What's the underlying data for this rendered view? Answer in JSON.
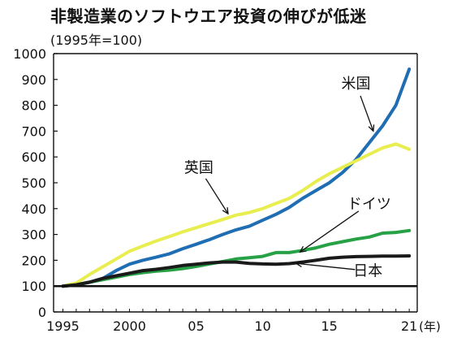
{
  "chart_data": {
    "type": "line",
    "title": "非製造業のソフトウエア投資の伸びが低迷",
    "subtitle": "(1995年=100)",
    "xlabel": "(年)",
    "ylim": [
      0,
      1000
    ],
    "xlim": [
      1994.3,
      2021.6
    ],
    "y_ticks": [
      "0",
      "100",
      "200",
      "300",
      "400",
      "500",
      "600",
      "700",
      "800",
      "900",
      "1000"
    ],
    "x_ticks": [
      {
        "x": 1995,
        "label": "1995"
      },
      {
        "x": 2000,
        "label": "2000"
      },
      {
        "x": 2005,
        "label": "05"
      },
      {
        "x": 2010,
        "label": "10"
      },
      {
        "x": 2015,
        "label": "15"
      },
      {
        "x": 2021,
        "label": "21"
      }
    ],
    "reference_line": 100,
    "grid": false,
    "legend": "inline annotations",
    "x": [
      1995,
      1996,
      1997,
      1998,
      1999,
      2000,
      2001,
      2002,
      2003,
      2004,
      2005,
      2006,
      2007,
      2008,
      2009,
      2010,
      2011,
      2012,
      2013,
      2014,
      2015,
      2016,
      2017,
      2018,
      2019,
      2020,
      2021
    ],
    "series": [
      {
        "name": "米国",
        "color": "#1f6db3",
        "values": [
          100,
          105,
          115,
          130,
          160,
          185,
          200,
          212,
          225,
          245,
          262,
          280,
          300,
          318,
          332,
          355,
          378,
          405,
          440,
          470,
          500,
          540,
          590,
          655,
          720,
          800,
          940
        ]
      },
      {
        "name": "英国",
        "color": "#e8ee4f",
        "values": [
          100,
          112,
          145,
          175,
          205,
          235,
          255,
          275,
          292,
          310,
          326,
          342,
          358,
          375,
          385,
          400,
          420,
          440,
          470,
          505,
          535,
          560,
          585,
          610,
          635,
          650,
          630
        ]
      },
      {
        "name": "ドイツ",
        "color": "#26a145",
        "values": [
          100,
          105,
          115,
          125,
          135,
          145,
          152,
          158,
          162,
          168,
          176,
          186,
          195,
          205,
          210,
          215,
          230,
          230,
          238,
          248,
          262,
          272,
          282,
          290,
          305,
          308,
          315
        ]
      },
      {
        "name": "日本",
        "color": "#1a1a1a",
        "values": [
          100,
          105,
          115,
          130,
          140,
          150,
          160,
          165,
          172,
          180,
          185,
          190,
          193,
          193,
          188,
          186,
          185,
          187,
          193,
          200,
          208,
          212,
          214,
          215,
          216,
          216,
          217
        ]
      }
    ]
  },
  "annotations": [
    {
      "label": "米国",
      "series": 0,
      "label_xy": [
        2017.0,
        865
      ],
      "arrow_to": [
        2018.3,
        700
      ]
    },
    {
      "label": "英国",
      "series": 1,
      "label_xy": [
        2005.2,
        540
      ],
      "arrow_to": [
        2007.4,
        380
      ]
    },
    {
      "label": "ドイツ",
      "series": 2,
      "label_xy": [
        2018.0,
        400
      ],
      "arrow_to": [
        2012.8,
        232
      ]
    },
    {
      "label": "日本",
      "series": 3,
      "label_xy": [
        2017.9,
        140
      ],
      "arrow_to": [
        2012.5,
        188
      ]
    }
  ]
}
